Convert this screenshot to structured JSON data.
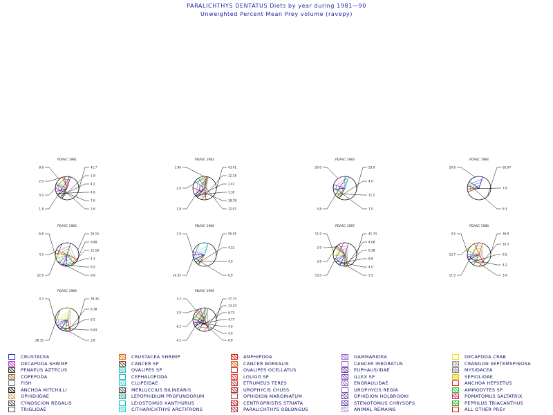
{
  "title": "PARALICHTHYS DENTATUS Diets by year during 1981—90",
  "subtitle": "Unweighted Percent Mean Prey volume (ravepy)",
  "chart_data": [
    {
      "type": "pie",
      "title": "PDASC 1981",
      "slices": [
        {
          "value": 41.7,
          "label": "41.7"
        },
        {
          "value": 1.8,
          "label": "1.8"
        },
        {
          "value": 4.2,
          "label": "4.2"
        },
        {
          "value": 4.6,
          "label": "4.6"
        },
        {
          "value": 7.6,
          "label": "7.6"
        },
        {
          "value": 2.6,
          "label": "2.6"
        },
        {
          "value": 8.6,
          "label": "8.6"
        },
        {
          "value": 2.0,
          "label": "2.0"
        },
        {
          "value": 5.0,
          "label": "5.0"
        },
        {
          "value": 1.8,
          "label": "1.8"
        }
      ]
    },
    {
      "type": "pie",
      "title": "PDASC 1982",
      "slices": [
        {
          "value": 43.41,
          "label": "43.41"
        },
        {
          "value": 12.18,
          "label": "12.18"
        },
        {
          "value": 2.41,
          "label": "2.41"
        },
        {
          "value": 3.39,
          "label": "3.39"
        },
        {
          "value": 18.78,
          "label": "18.78"
        },
        {
          "value": 12.07,
          "label": "12.07"
        },
        {
          "value": 3.96,
          "label": "3.96"
        },
        {
          "value": 2.0,
          "label": "2.0"
        },
        {
          "value": 1.8,
          "label": "1.8"
        }
      ]
    },
    {
      "type": "pie",
      "title": "PDASC 1983",
      "slices": [
        {
          "value": 53.0,
          "label": "53.0"
        },
        {
          "value": 4.0,
          "label": "4.0"
        },
        {
          "value": 11.2,
          "label": "11.2"
        },
        {
          "value": 7.0,
          "label": "7.0"
        },
        {
          "value": 20.0,
          "label": "20.0"
        },
        {
          "value": 4.8,
          "label": "4.8"
        }
      ]
    },
    {
      "type": "pie",
      "title": "PDASC 1984",
      "slices": [
        {
          "value": 65.07,
          "label": "65.07"
        },
        {
          "value": 7.6,
          "label": "7.6"
        },
        {
          "value": 6.3,
          "label": "6.3"
        },
        {
          "value": 20.6,
          "label": "20.6"
        }
      ]
    },
    {
      "type": "pie",
      "title": "PDASC 1985",
      "slices": [
        {
          "value": 26.15,
          "label": "26.15"
        },
        {
          "value": 6.88,
          "label": "6.88"
        },
        {
          "value": 11.18,
          "label": "11.18"
        },
        {
          "value": 4.3,
          "label": "4.3"
        },
        {
          "value": 6.0,
          "label": "6.0"
        },
        {
          "value": 6.8,
          "label": "6.8"
        },
        {
          "value": 6.8,
          "label": "6.8"
        },
        {
          "value": 4.3,
          "label": "4.3"
        },
        {
          "value": 22.6,
          "label": "22.6"
        }
      ]
    },
    {
      "type": "pie",
      "title": "PDASC 1986",
      "slices": [
        {
          "value": 50.55,
          "label": "50.55"
        },
        {
          "value": 4.22,
          "label": "4.22"
        },
        {
          "value": 4.6,
          "label": "4.6"
        },
        {
          "value": 6.9,
          "label": "6.9"
        },
        {
          "value": 3.5,
          "label": "3.5"
        },
        {
          "value": 24.35,
          "label": "24.35"
        }
      ]
    },
    {
      "type": "pie",
      "title": "PDASC 1987",
      "slices": [
        {
          "value": 41.74,
          "label": "41.74"
        },
        {
          "value": 4.08,
          "label": "4.08"
        },
        {
          "value": 6.38,
          "label": "6.38"
        },
        {
          "value": 6.8,
          "label": "6.8"
        },
        {
          "value": 4.0,
          "label": "4.0"
        },
        {
          "value": 5.5,
          "label": "5.5"
        },
        {
          "value": 11.9,
          "label": "11.9"
        },
        {
          "value": 2.9,
          "label": "2.9"
        },
        {
          "value": 3.9,
          "label": "3.9"
        },
        {
          "value": 13.0,
          "label": "13.0"
        }
      ]
    },
    {
      "type": "pie",
      "title": "PDASC 1988",
      "slices": [
        {
          "value": 36.9,
          "label": "36.9"
        },
        {
          "value": 16.3,
          "label": "16.3"
        },
        {
          "value": 9.5,
          "label": "9.5"
        },
        {
          "value": 4.2,
          "label": "4.2"
        },
        {
          "value": 3.9,
          "label": "3.9"
        },
        {
          "value": 4.5,
          "label": "4.5"
        },
        {
          "value": 13.7,
          "label": "13.7"
        },
        {
          "value": 11.0,
          "label": "11.0"
        }
      ]
    },
    {
      "type": "pie",
      "title": "PDASC 1989",
      "slices": [
        {
          "value": 38.35,
          "label": "38.35"
        },
        {
          "value": 6.38,
          "label": "6.38"
        },
        {
          "value": 6.5,
          "label": "6.5"
        },
        {
          "value": 6.83,
          "label": "6.83"
        },
        {
          "value": 3.8,
          "label": "3.8"
        },
        {
          "value": 4.3,
          "label": "4.3"
        },
        {
          "value": 28.35,
          "label": "28.35"
        }
      ]
    },
    {
      "type": "pie",
      "title": "PDASC 1990",
      "slices": [
        {
          "value": 37.74,
          "label": "37.74"
        },
        {
          "value": 13.33,
          "label": "13.33"
        },
        {
          "value": 6.73,
          "label": "6.73"
        },
        {
          "value": 4.77,
          "label": "4.77"
        },
        {
          "value": 4.6,
          "label": "4.6"
        },
        {
          "value": 4.6,
          "label": "4.6"
        },
        {
          "value": 6.8,
          "label": "6.8"
        },
        {
          "value": 3.3,
          "label": "3.3"
        },
        {
          "value": 3.9,
          "label": "3.9"
        },
        {
          "value": 6.3,
          "label": "6.3"
        },
        {
          "value": 4.3,
          "label": "4.3"
        }
      ]
    }
  ],
  "legend": [
    {
      "label": "CRUSTACEA",
      "color": "#1a33cc"
    },
    {
      "label": "DECAPODA SHRIMP",
      "color": "#cc33cc"
    },
    {
      "label": "PENAEUS AZTECUS",
      "color": "#333333"
    },
    {
      "label": "COPEPODA",
      "color": "#8a6a3a"
    },
    {
      "label": "FISH",
      "color": "#777777"
    },
    {
      "label": "ANCHOA MITCHILLI",
      "color": "#222222"
    },
    {
      "label": "OPHIDIIDAE",
      "color": "#c8a060"
    },
    {
      "label": "CYNOSCION REGALIS",
      "color": "#555555"
    },
    {
      "label": "TRIGLIDAE",
      "color": "#444444"
    },
    {
      "label": "CRUSTACEA SHRIMP",
      "color": "#e06a10"
    },
    {
      "label": "CANCER SP",
      "color": "#6a4a2a"
    },
    {
      "label": "OVALIPES SP",
      "color": "#22c8c8"
    },
    {
      "label": "CEPHALOPODA",
      "color": "#20b0b0"
    },
    {
      "label": "CLUPEIDAE",
      "color": "#40d0d0"
    },
    {
      "label": "MERLUCCIUS BILINEARIS",
      "color": "#505050"
    },
    {
      "label": "LEPOPHIDIUM PROFUNDORUM",
      "color": "#30a0a0"
    },
    {
      "label": "LEIOSTOMUS XANTHURUS",
      "color": "#10c0c0"
    },
    {
      "label": "CITHARICHTHYS ARCTIFRONS",
      "color": "#30d0d0"
    },
    {
      "label": "AMPHIPODA",
      "color": "#d81e1e"
    },
    {
      "label": "CANCER BOREALIS",
      "color": "#d86020"
    },
    {
      "label": "OVALIPES OCELLATUS",
      "color": "#c03030"
    },
    {
      "label": "LOLIGO SP",
      "color": "#e03a3a"
    },
    {
      "label": "ETRUMEUS TERES",
      "color": "#c04040"
    },
    {
      "label": "UROPHYCIS CHUSS",
      "color": "#b03030"
    },
    {
      "label": "OPHIDION MARGINATUM",
      "color": "#a04040"
    },
    {
      "label": "CENTROPRISTIS STRIATA",
      "color": "#c02020"
    },
    {
      "label": "PARALICHTHYS OBLONGUS",
      "color": "#b04060"
    },
    {
      "label": "GAMMARIDEA",
      "color": "#9a5ad0"
    },
    {
      "label": "CANCER IRRORATUS",
      "color": "#8a60c0"
    },
    {
      "label": "EUPHAUSIIDAE",
      "color": "#6a3aa0"
    },
    {
      "label": "ILLEX SP",
      "color": "#7a4ab8"
    },
    {
      "label": "ENGRAULIDAE",
      "color": "#9070c0"
    },
    {
      "label": "UROPHYCIS REGIA",
      "color": "#8050b0"
    },
    {
      "label": "OPHIDION HOLBROOKI",
      "color": "#7050a0"
    },
    {
      "label": "STENOTOMUS CHRYSOPS",
      "color": "#6040a0"
    },
    {
      "label": "ANIMAL REMAINS",
      "color": "#b0a0d0"
    },
    {
      "label": "DECAPODA CRAB",
      "color": "#f0e000"
    },
    {
      "label": "CRANGON SEPTEMSPINOSA",
      "color": "#909090"
    },
    {
      "label": "MYSIDACEA",
      "color": "#808080"
    },
    {
      "label": "SEPIOLIDAE",
      "color": "#e0c000"
    },
    {
      "label": "ANCHOA HEPSETUS",
      "color": "#e02020"
    },
    {
      "label": "AMMODYTES SP",
      "color": "#30c030"
    },
    {
      "label": "POMATOMUS SALTATRIX",
      "color": "#d03060"
    },
    {
      "label": "PEPRILUS TRIACANTHUS",
      "color": "#20b020"
    },
    {
      "label": "ALL OTHER PREY",
      "color": "#cc1010"
    }
  ]
}
